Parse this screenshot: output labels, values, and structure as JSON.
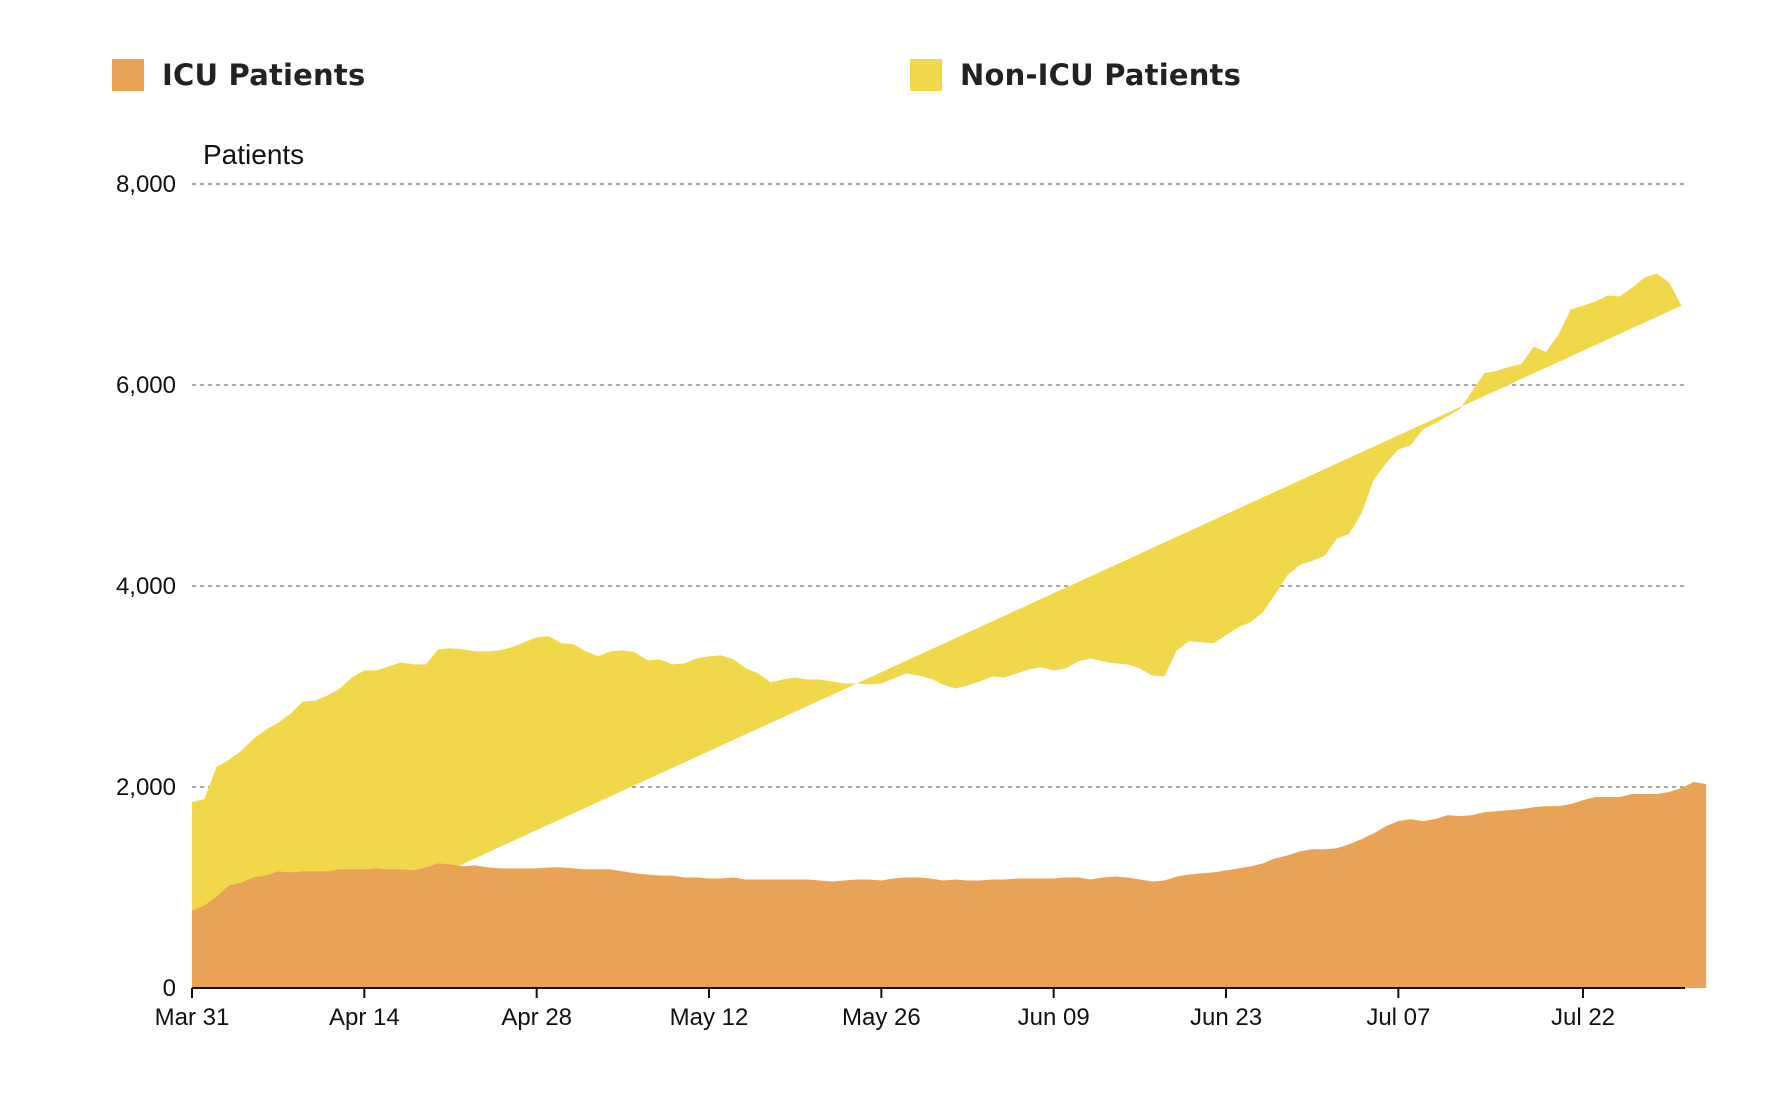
{
  "chart_data": {
    "type": "area",
    "stacked": true,
    "title": "",
    "xlabel": "",
    "ylabel": "Patients",
    "ylim": [
      0,
      8000
    ],
    "y_ticks": [
      0,
      2000,
      4000,
      6000,
      8000
    ],
    "y_tick_labels": [
      "0",
      "2,000",
      "4,000",
      "6,000",
      "8,000"
    ],
    "x_tick_labels": [
      "Mar 31",
      "Apr 14",
      "Apr 28",
      "May 12",
      "May 26",
      "Jun 09",
      "Jun 23",
      "Jul 07",
      "Jul 22"
    ],
    "x_tick_days": [
      0,
      14,
      28,
      42,
      56,
      70,
      84,
      98,
      113
    ],
    "x_range_days": [
      0,
      121
    ],
    "grid": true,
    "legend_position": "top",
    "series": [
      {
        "name": "ICU Patients",
        "color": "#E8A357",
        "values": [
          770,
          820,
          910,
          1020,
          1050,
          1100,
          1120,
          1160,
          1150,
          1160,
          1160,
          1160,
          1180,
          1180,
          1180,
          1190,
          1180,
          1180,
          1170,
          1200,
          1240,
          1230,
          1210,
          1220,
          1200,
          1190,
          1190,
          1190,
          1190,
          1200,
          1200,
          1190,
          1180,
          1180,
          1180,
          1160,
          1140,
          1130,
          1120,
          1120,
          1100,
          1100,
          1090,
          1090,
          1100,
          1080,
          1080,
          1080,
          1080,
          1080,
          1080,
          1070,
          1060,
          1070,
          1080,
          1080,
          1070,
          1090,
          1100,
          1100,
          1090,
          1070,
          1080,
          1070,
          1070,
          1080,
          1080,
          1090,
          1090,
          1090,
          1090,
          1100,
          1100,
          1080,
          1100,
          1110,
          1100,
          1080,
          1060,
          1070,
          1110,
          1130,
          1140,
          1150,
          1170,
          1190,
          1210,
          1240,
          1290,
          1320,
          1360,
          1380,
          1380,
          1390,
          1430,
          1480,
          1540,
          1610,
          1660,
          1680,
          1660,
          1680,
          1720,
          1710,
          1720,
          1750,
          1760,
          1770,
          1780,
          1800,
          1810,
          1810,
          1830,
          1870,
          1900,
          1900,
          1900,
          1930,
          1930,
          1930,
          1950,
          1990,
          2050,
          2030
        ]
      },
      {
        "name": "Non-ICU Patients",
        "color": "#F0D84A",
        "values": [
          1080,
          1060,
          1290,
          1250,
          1310,
          1380,
          1450,
          1480,
          1580,
          1690,
          1700,
          1750,
          1800,
          1910,
          1980,
          1970,
          2020,
          2060,
          2050,
          2020,
          2130,
          2150,
          2160,
          2130,
          2150,
          2170,
          2200,
          2250,
          2300,
          2300,
          2230,
          2230,
          2170,
          2120,
          2170,
          2200,
          2200,
          2130,
          2150,
          2100,
          2130,
          2180,
          2210,
          2220,
          2170,
          2100,
          2050,
          1960,
          1990,
          2010,
          1990,
          2000,
          1990,
          1960,
          1950,
          1940,
          1960,
          1990,
          2030,
          2010,
          1990,
          1950,
          1900,
          1940,
          1980,
          2020,
          2010,
          2040,
          2080,
          2100,
          2070,
          2080,
          2150,
          2200,
          2150,
          2120,
          2120,
          2100,
          2050,
          2030,
          2250,
          2320,
          2300,
          2280,
          2340,
          2400,
          2430,
          2500,
          2630,
          2790,
          2850,
          2870,
          2920,
          3080,
          3090,
          3240,
          3520,
          3610,
          3700,
          3720,
          3900,
          3940,
          3970,
          4050,
          4220,
          4370,
          4380,
          4410,
          4430,
          4580,
          4520,
          4690,
          4920,
          4920,
          4930,
          4990,
          4980,
          5040,
          5140,
          5180,
          5070,
          4800
        ]
      }
    ]
  }
}
